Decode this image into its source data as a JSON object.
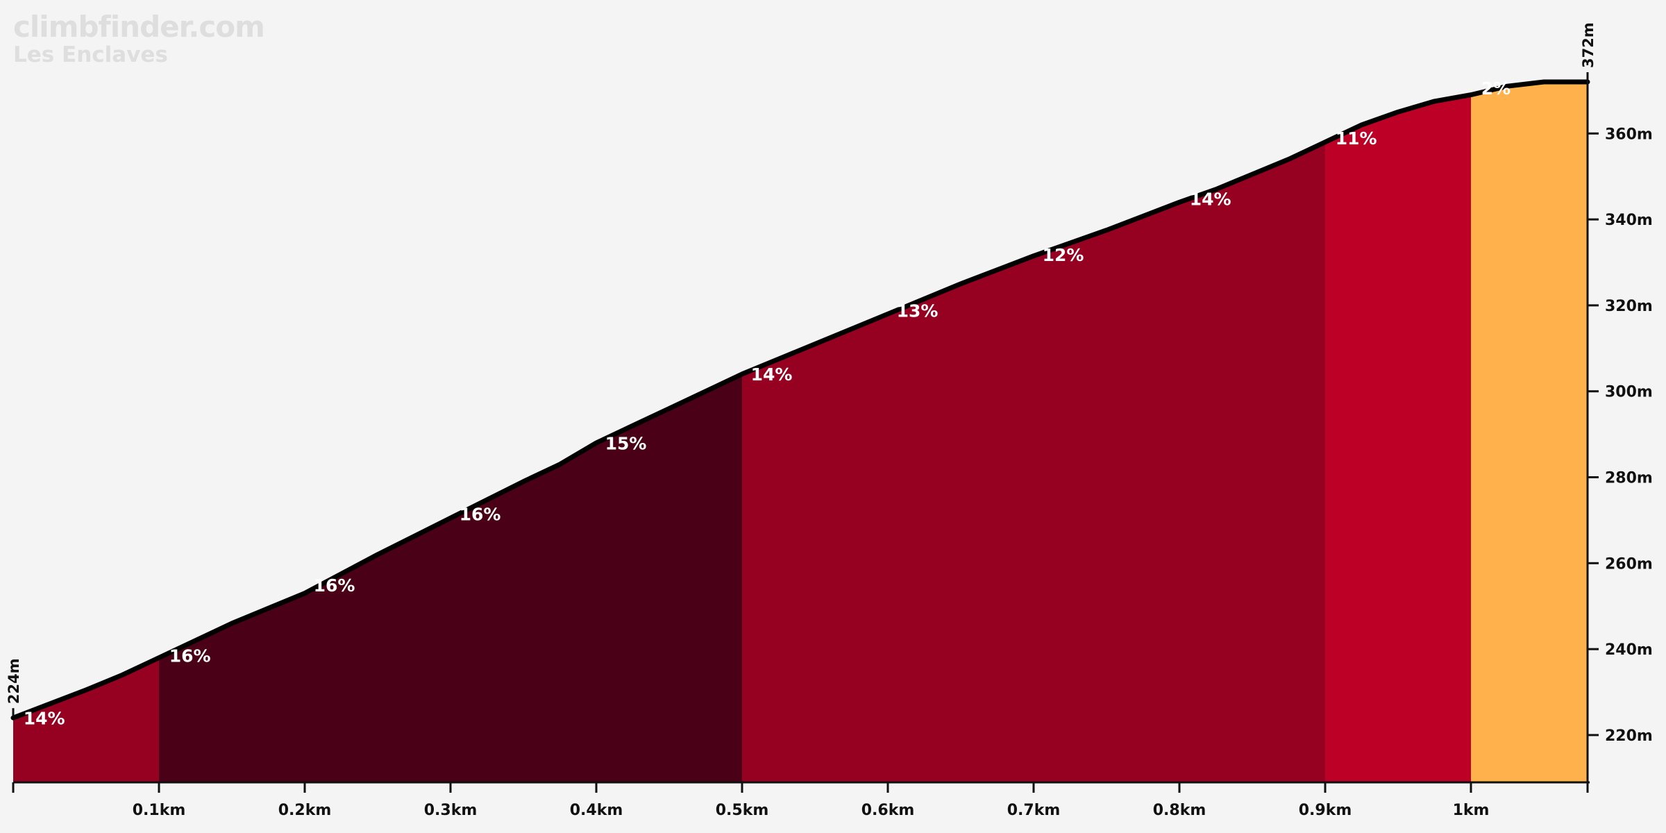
{
  "branding": {
    "site": "climbfinder.com",
    "climb_name": "Les Enclaves"
  },
  "chart_data": {
    "type": "area",
    "title": "",
    "xlabel": "",
    "ylabel": "",
    "x_unit": "km",
    "y_unit": "m",
    "xlim": [
      0,
      1.08
    ],
    "ylim": [
      209,
      372
    ],
    "grid": false,
    "legend": "none",
    "start_elevation_label": "224m",
    "end_elevation_label": "372m",
    "x_ticks": [
      {
        "value": 0.1,
        "label": "0.1km"
      },
      {
        "value": 0.2,
        "label": "0.2km"
      },
      {
        "value": 0.3,
        "label": "0.3km"
      },
      {
        "value": 0.4,
        "label": "0.4km"
      },
      {
        "value": 0.5,
        "label": "0.5km"
      },
      {
        "value": 0.6,
        "label": "0.6km"
      },
      {
        "value": 0.7,
        "label": "0.7km"
      },
      {
        "value": 0.8,
        "label": "0.8km"
      },
      {
        "value": 0.9,
        "label": "0.9km"
      },
      {
        "value": 1.0,
        "label": "1km"
      }
    ],
    "y_ticks": [
      {
        "value": 220,
        "label": "220m"
      },
      {
        "value": 240,
        "label": "240m"
      },
      {
        "value": 260,
        "label": "260m"
      },
      {
        "value": 280,
        "label": "280m"
      },
      {
        "value": 300,
        "label": "300m"
      },
      {
        "value": 320,
        "label": "320m"
      },
      {
        "value": 340,
        "label": "340m"
      },
      {
        "value": 360,
        "label": "360m"
      }
    ],
    "colors": {
      "background": "#f4f4f4",
      "profile_line": "#000000",
      "axis": "#111111"
    },
    "segments": [
      {
        "start": 0.0,
        "end": 0.1,
        "color": "#960021"
      },
      {
        "start": 0.1,
        "end": 0.5,
        "color": "#4a0016"
      },
      {
        "start": 0.5,
        "end": 0.9,
        "color": "#960021"
      },
      {
        "start": 0.9,
        "end": 1.0,
        "color": "#bc0026"
      },
      {
        "start": 1.0,
        "end": 1.08,
        "color": "#ffb24c"
      }
    ],
    "profile": [
      {
        "x": 0.0,
        "y": 224
      },
      {
        "x": 0.05,
        "y": 230.5
      },
      {
        "x": 0.075,
        "y": 234
      },
      {
        "x": 0.1,
        "y": 238
      },
      {
        "x": 0.15,
        "y": 246
      },
      {
        "x": 0.2,
        "y": 253
      },
      {
        "x": 0.25,
        "y": 262
      },
      {
        "x": 0.3,
        "y": 270.5
      },
      {
        "x": 0.35,
        "y": 279
      },
      {
        "x": 0.375,
        "y": 283
      },
      {
        "x": 0.4,
        "y": 288
      },
      {
        "x": 0.425,
        "y": 292
      },
      {
        "x": 0.45,
        "y": 296
      },
      {
        "x": 0.5,
        "y": 304
      },
      {
        "x": 0.55,
        "y": 311
      },
      {
        "x": 0.6,
        "y": 318
      },
      {
        "x": 0.65,
        "y": 325
      },
      {
        "x": 0.7,
        "y": 331.5
      },
      {
        "x": 0.75,
        "y": 337.5
      },
      {
        "x": 0.8,
        "y": 344
      },
      {
        "x": 0.825,
        "y": 347
      },
      {
        "x": 0.85,
        "y": 350.5
      },
      {
        "x": 0.875,
        "y": 354
      },
      {
        "x": 0.9,
        "y": 358
      },
      {
        "x": 0.925,
        "y": 362
      },
      {
        "x": 0.95,
        "y": 365
      },
      {
        "x": 0.975,
        "y": 367.5
      },
      {
        "x": 1.0,
        "y": 369
      },
      {
        "x": 1.025,
        "y": 371
      },
      {
        "x": 1.05,
        "y": 372
      },
      {
        "x": 1.08,
        "y": 372
      }
    ],
    "grade_labels": [
      {
        "text": "14%",
        "x": 0.007,
        "y": 222.5
      },
      {
        "text": "16%",
        "x": 0.107,
        "y": 237
      },
      {
        "text": "16%",
        "x": 0.206,
        "y": 253.4
      },
      {
        "text": "16%",
        "x": 0.306,
        "y": 270
      },
      {
        "text": "15%",
        "x": 0.406,
        "y": 286.5
      },
      {
        "text": "14%",
        "x": 0.506,
        "y": 302.5
      },
      {
        "text": "13%",
        "x": 0.606,
        "y": 317.3
      },
      {
        "text": "12%",
        "x": 0.706,
        "y": 330.3
      },
      {
        "text": "14%",
        "x": 0.807,
        "y": 343.3
      },
      {
        "text": "11%",
        "x": 0.907,
        "y": 357.5
      },
      {
        "text": "2%",
        "x": 1.007,
        "y": 369.1
      }
    ]
  }
}
